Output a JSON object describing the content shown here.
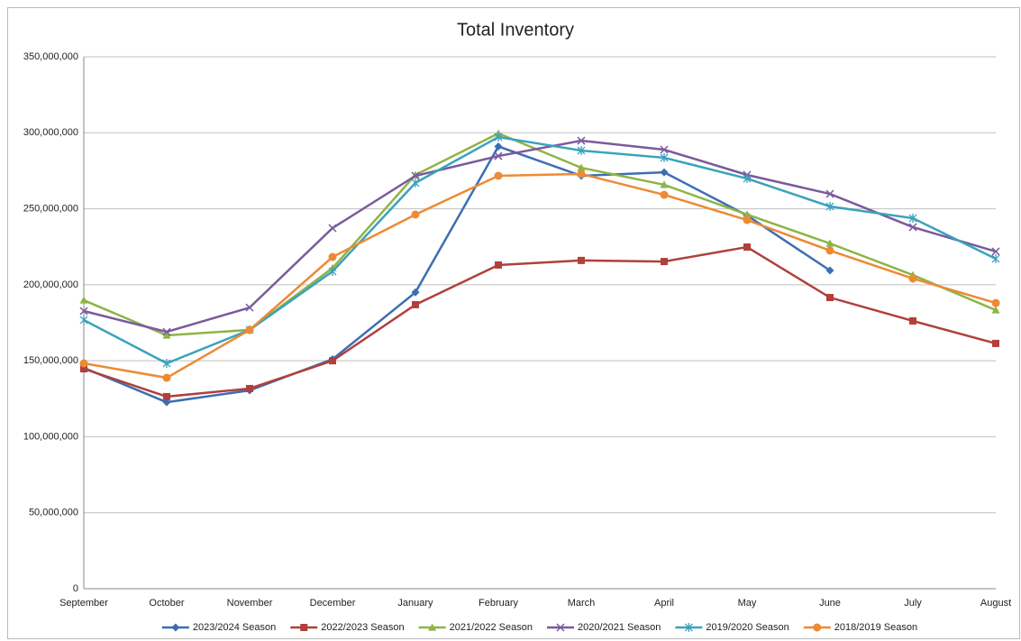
{
  "chart_data": {
    "type": "line",
    "title": "Total Inventory",
    "categories": [
      "September",
      "October",
      "November",
      "December",
      "January",
      "February",
      "March",
      "April",
      "May",
      "June",
      "July",
      "August"
    ],
    "ylim": [
      0,
      350000000
    ],
    "yticks": [
      0,
      {
        "value": 50000000,
        "label": "50,000,000"
      },
      {
        "value": 100000000,
        "label": "100,000,000"
      },
      {
        "value": 150000000,
        "label": "150,000,000"
      },
      {
        "value": 200000000,
        "label": "200,000,000"
      },
      {
        "value": 250000000,
        "label": "250,000,000"
      },
      {
        "value": 300000000,
        "label": "300,000,000"
      },
      {
        "value": 350000000,
        "label": "350,000,000"
      }
    ],
    "grid": true,
    "legend": "bottom",
    "series": [
      {
        "name": "2023/2024 Season",
        "color": "#3c6eb4",
        "marker": "diamond",
        "values": [
          145300000,
          122700000,
          130500000,
          151000000,
          195000000,
          291000000,
          271700000,
          274000000,
          245600000,
          209400000,
          null,
          null
        ]
      },
      {
        "name": "2022/2023 Season",
        "color": "#b0403c",
        "marker": "square",
        "values": [
          144700000,
          126400000,
          131700000,
          150000000,
          186900000,
          213000000,
          216000000,
          215300000,
          224800000,
          191600000,
          176200000,
          161400000
        ]
      },
      {
        "name": "2021/2022 Season",
        "color": "#8db446",
        "marker": "triangle",
        "values": [
          189800000,
          166700000,
          170300000,
          211000000,
          272300000,
          299600000,
          277000000,
          265800000,
          246200000,
          227200000,
          206400000,
          183300000
        ]
      },
      {
        "name": "2020/2021 Season",
        "color": "#7a5a9c",
        "marker": "x",
        "values": [
          182700000,
          169000000,
          185000000,
          237300000,
          271700000,
          284700000,
          294800000,
          288900000,
          272300000,
          259800000,
          237900000,
          221900000
        ]
      },
      {
        "name": "2019/2020 Season",
        "color": "#3aa2bd",
        "marker": "asterisk",
        "values": [
          176800000,
          148300000,
          170300000,
          208800000,
          267000000,
          297200000,
          288300000,
          283600000,
          269900000,
          251500000,
          243800000,
          217100000
        ]
      },
      {
        "name": "2018/2019 Season",
        "color": "#ed8a35",
        "marker": "circle",
        "values": [
          148300000,
          138800000,
          170300000,
          218300000,
          246200000,
          271700000,
          272900000,
          259200000,
          242600000,
          222500000,
          204100000,
          188000000
        ]
      }
    ]
  }
}
